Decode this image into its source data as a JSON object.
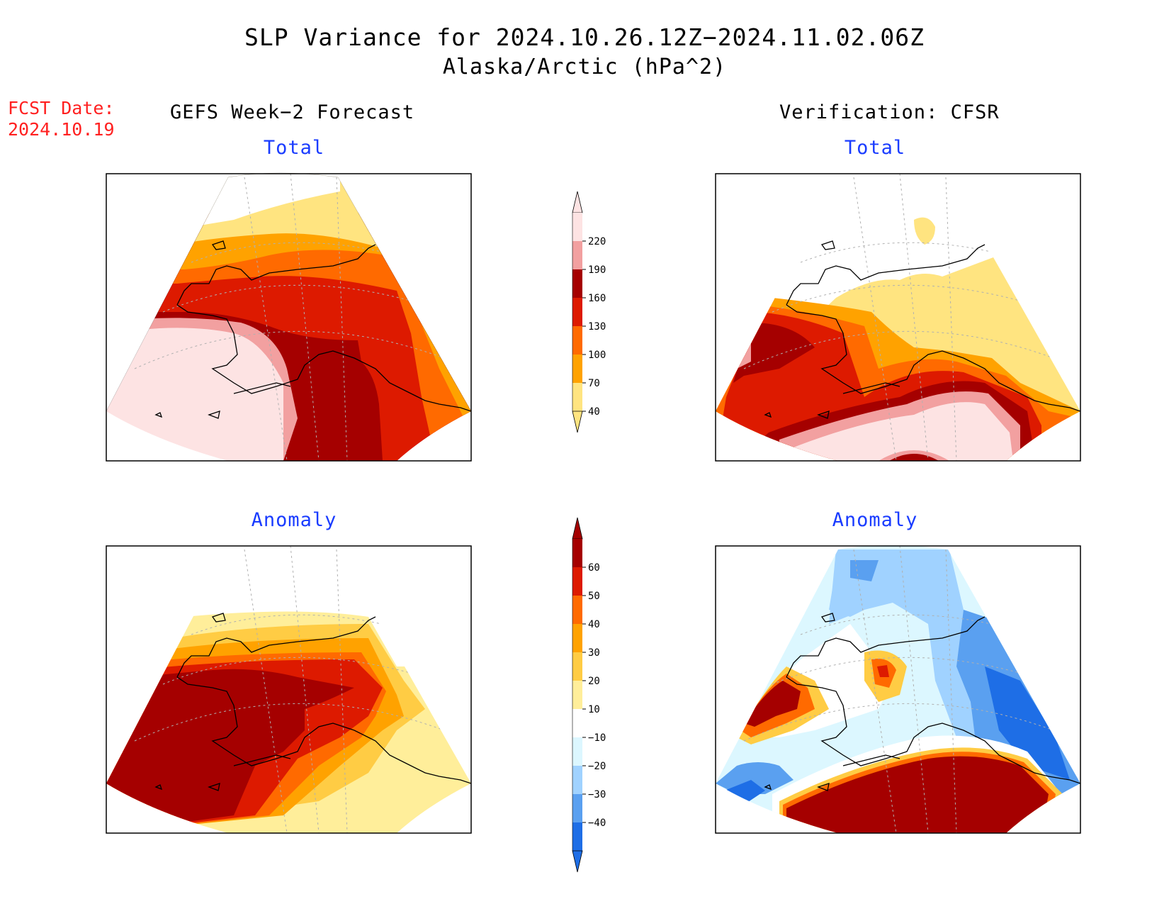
{
  "title": "SLP Variance for 2024.10.26.12Z−2024.11.02.06Z",
  "subtitle": "Alaska/Arctic (hPa^2)",
  "forecast_label": "FCST Date:",
  "forecast_date": "2024.10.19",
  "left_column_header": "GEFS Week−2 Forecast",
  "right_column_header": "Verification: CFSR",
  "panels": {
    "forecast_total": {
      "title": "Total"
    },
    "verification_total": {
      "title": "Total"
    },
    "forecast_anomaly": {
      "title": "Anomaly"
    },
    "verification_anomaly": {
      "title": "Anomaly"
    }
  },
  "colorbar_total": {
    "labels": [
      "220",
      "190",
      "160",
      "130",
      "100",
      "70",
      "40"
    ],
    "colors": [
      "#fde3e3",
      "#f2a0a0",
      "#a50000",
      "#dd1a00",
      "#ff6a00",
      "#ffa200",
      "#ffe480"
    ]
  },
  "colorbar_anomaly": {
    "labels": [
      "60",
      "50",
      "40",
      "30",
      "20",
      "10",
      "−10",
      "−20",
      "−30",
      "−40"
    ],
    "colors": [
      "#a50000",
      "#dd1a00",
      "#ff6a00",
      "#ffa200",
      "#ffcc44",
      "#ffee9a",
      "#ffffff",
      "#dcf7ff",
      "#a0d2ff",
      "#5aa0f0",
      "#1e6ee6"
    ]
  },
  "colors": {
    "title_blue": "#1a3cff",
    "forecast_date_red": "#ff2020"
  }
}
